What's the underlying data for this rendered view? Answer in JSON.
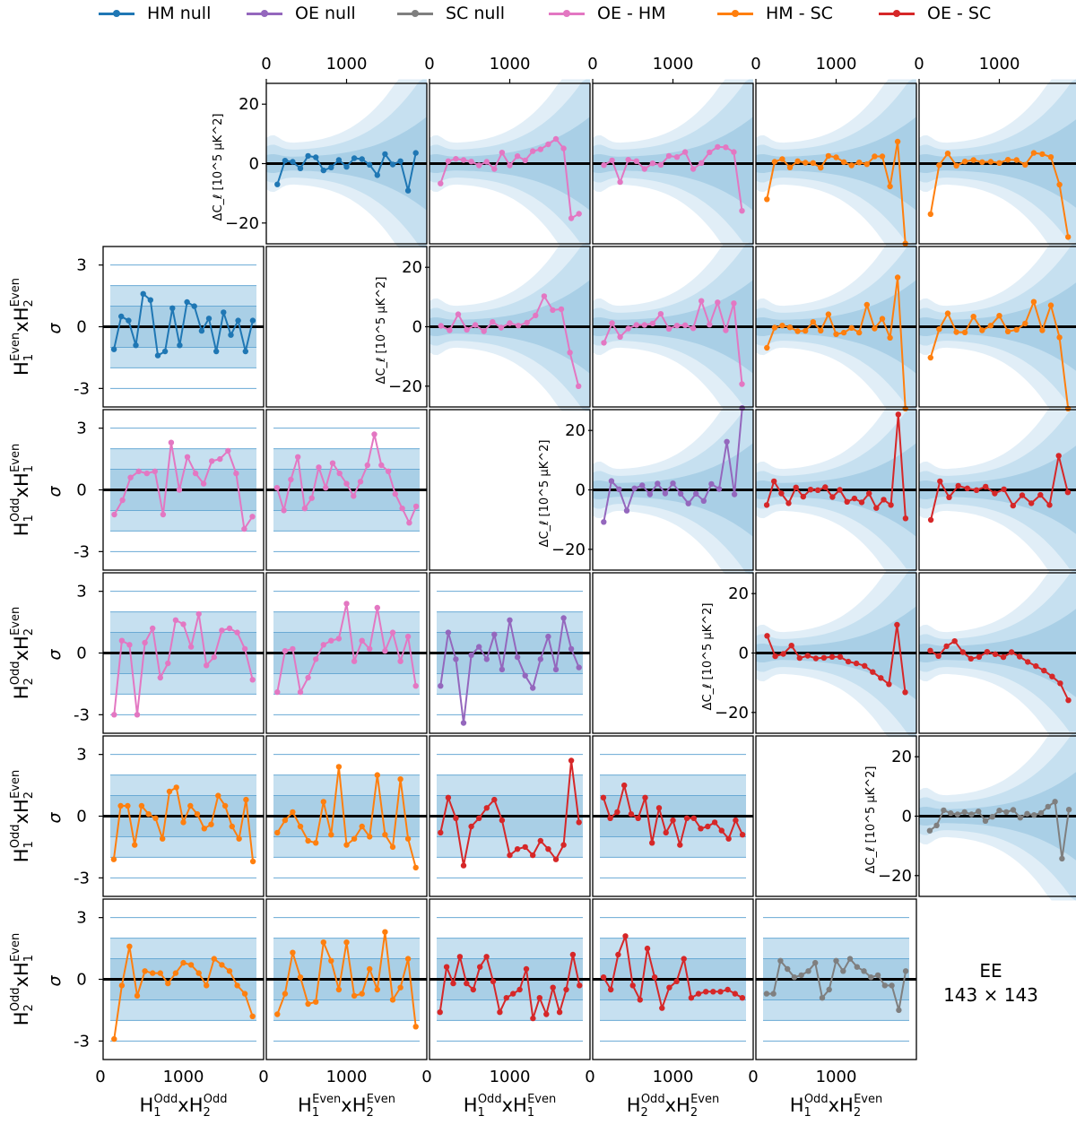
{
  "legend": [
    {
      "label": "HM null",
      "color": "#1f77b4"
    },
    {
      "label": "OE null",
      "color": "#9467bd"
    },
    {
      "label": "SC null",
      "color": "#7f7f7f"
    },
    {
      "label": "OE - HM",
      "color": "#e377c2"
    },
    {
      "label": "HM - SC",
      "color": "#ff7f0e"
    },
    {
      "label": "OE - SC",
      "color": "#d62728"
    }
  ],
  "annotation": {
    "line1": "EE",
    "line2": "143 × 143"
  },
  "axis_text": {
    "sigma": "σ",
    "dcl_ylabel": "ΔC_ℓ [10^5 μK^2]",
    "map_rows": [
      "H1EvenxH2Even",
      "H1OddxH1Even",
      "H2OddxH2Even",
      "H1OddxH2Even",
      "H2OddxH1Even"
    ],
    "map_cols": [
      "H1OddxH2Odd",
      "H1EvenxH2Even",
      "H1OddxH1Even",
      "H2OddxH2Even",
      "H1OddxH2Even"
    ],
    "x_ticks": [
      "0",
      "1000"
    ],
    "dcl_yticks": [
      "20",
      "0",
      "−20"
    ],
    "sigma_yticks": [
      "3",
      "0",
      "-3"
    ]
  },
  "chart_data": {
    "type": "line",
    "panel_grid": "6x6 triangular matrix; upper triangle: ΔC_ℓ differences with 1σ/2σ/3σ bands; lower triangle: differences normalised in σ",
    "x_range": [
      0,
      2000
    ],
    "dcl_ylim": [
      -27,
      27
    ],
    "sigma_ylim": [
      -3.9,
      3.9
    ],
    "maps": [
      "H1OddxH2Odd",
      "H1EvenxH2Even",
      "H1OddxH1Even",
      "H2OddxH2Even",
      "H1OddxH2Even",
      "H2OddxH1Even"
    ],
    "colors": {
      "hm": "#1f77b4",
      "oe": "#9467bd",
      "sc": "#7f7f7f",
      "oehm": "#e377c2",
      "hmsc": "#ff7f0e",
      "oesc": "#d62728"
    },
    "upper": [
      {
        "row": 0,
        "col": 1,
        "series": "hm",
        "y": [
          -7,
          1,
          0.6,
          -1.6,
          2.6,
          2.1,
          -2.3,
          -1.3,
          1.2,
          -1.1,
          1.8,
          1.5,
          -0.4,
          -3.9,
          3.2,
          -0.3,
          0.8,
          -9.1,
          3.6
        ]
      },
      {
        "row": 0,
        "col": 2,
        "series": "oehm",
        "y": [
          -6.7,
          0.8,
          1.6,
          1.2,
          0.7,
          -0.6,
          0.6,
          -1.8,
          3.7,
          -0.6,
          2.5,
          1.1,
          4.2,
          4.8,
          6.5,
          8.3,
          5.1,
          -18.4,
          -16.9
        ]
      },
      {
        "row": 0,
        "col": 3,
        "series": "oehm",
        "y": [
          -0.5,
          1.1,
          -6.2,
          1.3,
          0.8,
          -1.8,
          0.1,
          -0.4,
          2.6,
          2.2,
          3.9,
          -1.8,
          0.2,
          3.8,
          5.6,
          5.5,
          3.9,
          -15.9
        ]
      },
      {
        "row": 0,
        "col": 4,
        "series": "hmsc",
        "y": [
          -12,
          0.6,
          1.5,
          -1.3,
          0.8,
          0.3,
          0.2,
          -1.4,
          2.6,
          2.1,
          0.5,
          -0.6,
          0.4,
          -0.2,
          2.4,
          2.4,
          -7.7,
          7.4,
          -26.9
        ]
      },
      {
        "row": 0,
        "col": 5,
        "series": "hmsc",
        "y": [
          -17,
          -0.5,
          3.4,
          -0.7,
          0.7,
          1.2,
          0.5,
          0.6,
          0.2,
          1.3,
          1.2,
          -0.4,
          3.6,
          3.2,
          2.2,
          -7.1,
          -24.7
        ]
      },
      {
        "row": 1,
        "col": 2,
        "series": "oehm",
        "y": [
          0.3,
          -1.2,
          4.2,
          -1,
          0.6,
          -1.5,
          1.6,
          -0.3,
          1.2,
          0.4,
          1.4,
          3.8,
          10.3,
          5.6,
          5.9,
          -8.7,
          -20
        ]
      },
      {
        "row": 1,
        "col": 3,
        "series": "oehm",
        "y": [
          -5.4,
          1.2,
          -3.4,
          -0.6,
          0.6,
          0.6,
          1.1,
          4.3,
          -0.7,
          0.4,
          0.5,
          -0.5,
          8.7,
          0.7,
          8.2,
          -1.2,
          7.9,
          -19.3
        ]
      },
      {
        "row": 1,
        "col": 4,
        "series": "hmsc",
        "y": [
          -7.1,
          -0.3,
          0.4,
          -0.2,
          -1.5,
          -1.4,
          1.6,
          -1.3,
          4.2,
          -2.5,
          -2,
          -0.4,
          -2,
          7.4,
          -0.6,
          2.7,
          -3.7,
          16.6,
          -30.9
        ]
      },
      {
        "row": 1,
        "col": 5,
        "series": "hmsc",
        "y": [
          -10.4,
          -0.8,
          4.5,
          -1.8,
          -1.9,
          3.4,
          -1.2,
          0.4,
          3.7,
          -1.6,
          -1,
          1.1,
          8.4,
          -1.2,
          7.2,
          -3.6,
          -29
        ]
      },
      {
        "row": 2,
        "col": 3,
        "series": "oe",
        "y": [
          -10.8,
          3,
          0.2,
          -7,
          0.5,
          1.5,
          -1.5,
          2.1,
          -1.2,
          2.2,
          -1.3,
          -4.6,
          -1.3,
          -3.7,
          2,
          0.3,
          16.2,
          -1.5,
          29.3
        ]
      },
      {
        "row": 2,
        "col": 4,
        "series": "oesc",
        "y": [
          -5.1,
          2.9,
          -1.2,
          -4.5,
          0.8,
          -2.3,
          0.1,
          -0.1,
          0.9,
          -2.4,
          0,
          -4,
          -2.9,
          -4.2,
          -1.2,
          -6.1,
          -3.3,
          -5.1,
          25.4,
          -9.6
        ]
      },
      {
        "row": 2,
        "col": 5,
        "series": "oesc",
        "y": [
          -10.1,
          2.9,
          -2.5,
          1.4,
          0.5,
          -0.1,
          1.1,
          -1.2,
          0.2,
          -5.3,
          -1.8,
          -4.5,
          -1.7,
          -5.1,
          11.5,
          -0.8
        ]
      },
      {
        "row": 3,
        "col": 4,
        "series": "oesc",
        "y": [
          5.8,
          -1.1,
          -0.3,
          2.5,
          -1.7,
          -0.9,
          -1.8,
          -1.6,
          -1.3,
          -1.3,
          -2.9,
          -3.5,
          -4.3,
          -6.4,
          -8.4,
          -10.5,
          9.5,
          -13.2
        ]
      },
      {
        "row": 3,
        "col": 5,
        "series": "oesc",
        "y": [
          0.8,
          -1,
          2.3,
          4,
          0.3,
          -1.9,
          -1.3,
          0.4,
          -0.4,
          -1.4,
          0.3,
          -1.2,
          -3,
          -4.4,
          -5.9,
          -7.9,
          -10.2,
          -15.9
        ]
      },
      {
        "row": 4,
        "col": 5,
        "series": "sc",
        "y": [
          -4.9,
          -3.1,
          2,
          1,
          0.6,
          1.4,
          0.6,
          1.6,
          -1.6,
          -0.2,
          1.9,
          1.4,
          2.1,
          -0.5,
          0.8,
          0.4,
          1.1,
          3.2,
          4.9,
          -14.3,
          2.2
        ]
      }
    ],
    "lower": [
      {
        "row": 1,
        "col": 0,
        "series": "hm",
        "y": [
          -1.1,
          0.5,
          0.3,
          -0.9,
          1.6,
          1.3,
          -1.4,
          -1.2,
          0.9,
          -0.9,
          1.2,
          1,
          -0.2,
          0.4,
          -1.2,
          0.7,
          -0.4,
          0.3,
          -1.2,
          0.3
        ]
      },
      {
        "row": 2,
        "col": 0,
        "series": "oehm",
        "y": [
          -1.2,
          -0.5,
          0.6,
          0.9,
          0.8,
          0.9,
          -1.2,
          2.3,
          0,
          1.6,
          0.8,
          0.3,
          1.4,
          1.5,
          1.9,
          0.8,
          -1.9,
          -1.3
        ]
      },
      {
        "row": 2,
        "col": 1,
        "series": "oehm",
        "y": [
          0.1,
          -1,
          0.5,
          1.6,
          -0.9,
          -0.4,
          1.1,
          0.1,
          1.3,
          0.8,
          0.3,
          -0.3,
          0.4,
          1.2,
          2.7,
          1.2,
          0.9,
          -0.2,
          -0.9,
          -1.6,
          -0.8
        ]
      },
      {
        "row": 3,
        "col": 0,
        "series": "oehm",
        "y": [
          -3,
          0.6,
          0.4,
          -3,
          0.5,
          1.2,
          -1.2,
          -0.5,
          1.6,
          1.4,
          0.3,
          1.9,
          -0.6,
          -0.2,
          1.1,
          1.2,
          1,
          0.2,
          -1.3
        ]
      },
      {
        "row": 3,
        "col": 1,
        "series": "oehm",
        "y": [
          -1.9,
          0.1,
          0.2,
          -1.9,
          -1.2,
          -0.3,
          0.4,
          0.6,
          0.7,
          2.4,
          -0.4,
          0.6,
          0.2,
          2.2,
          0.1,
          1,
          -0.4,
          0.8,
          -1.6
        ]
      },
      {
        "row": 3,
        "col": 2,
        "series": "oe",
        "y": [
          -1.6,
          1,
          -0.3,
          -3.4,
          -0.1,
          0.3,
          -0.3,
          0.9,
          -0.8,
          1.6,
          -0.2,
          -1.1,
          -1.7,
          -0.3,
          0.8,
          -0.8,
          1.7,
          0.2,
          -0.7
        ]
      },
      {
        "row": 4,
        "col": 0,
        "series": "hmsc",
        "y": [
          -2.1,
          0.5,
          0.5,
          -1.4,
          0.5,
          0.1,
          -0.1,
          -1.1,
          1.2,
          1.4,
          -0.3,
          0.5,
          0.1,
          -0.6,
          -0.4,
          1,
          0.5,
          -0.5,
          -1.1,
          0.8,
          -2.2
        ]
      },
      {
        "row": 4,
        "col": 1,
        "series": "hmsc",
        "y": [
          -0.8,
          -0.2,
          0.2,
          -0.5,
          -1.2,
          -1.3,
          0.7,
          -0.9,
          2.4,
          -1.4,
          -1.1,
          -0.5,
          -1,
          2,
          -0.9,
          -1.5,
          1.8,
          -1.1,
          -2.5
        ]
      },
      {
        "row": 4,
        "col": 2,
        "series": "oesc",
        "y": [
          -0.8,
          0.9,
          -0.1,
          -2.4,
          -0.5,
          -0.1,
          0.4,
          0.8,
          -0.2,
          -1.9,
          -1.6,
          -1.5,
          -1.9,
          -1.2,
          -1.6,
          -2.1,
          -1.4,
          2.7,
          -0.3
        ]
      },
      {
        "row": 4,
        "col": 3,
        "series": "oesc",
        "y": [
          0.9,
          -0.1,
          0.2,
          1.5,
          0.1,
          -0.1,
          0.9,
          -1.3,
          0.4,
          -0.8,
          -0.2,
          -1.4,
          -0.1,
          -0.1,
          -0.6,
          -0.5,
          -0.3,
          -0.7,
          -1.1,
          -0.2,
          -0.9
        ]
      },
      {
        "row": 5,
        "col": 0,
        "series": "hmsc",
        "y": [
          -2.9,
          -0.3,
          1.6,
          -0.8,
          0.4,
          0.3,
          0.3,
          -0.2,
          0.3,
          0.8,
          0.7,
          0.3,
          -0.3,
          1,
          0.7,
          0.4,
          -0.3,
          -0.7,
          -1.8
        ]
      },
      {
        "row": 5,
        "col": 1,
        "series": "hmsc",
        "y": [
          -1.7,
          -0.7,
          1.3,
          0.1,
          -1.2,
          -1.1,
          1.8,
          0.9,
          -0.5,
          1.8,
          -0.8,
          -0.7,
          0.5,
          -0.5,
          2.3,
          -1,
          -0.4,
          1,
          -2.3
        ]
      },
      {
        "row": 5,
        "col": 2,
        "series": "oesc",
        "y": [
          -1.6,
          0.6,
          -0.2,
          1.1,
          -0.2,
          -0.5,
          0.6,
          1.1,
          -0.1,
          -1.6,
          -0.9,
          -0.7,
          -0.5,
          0.5,
          -1.9,
          -0.9,
          -1.7,
          -0.4,
          -1.6,
          -0.5,
          1.2,
          -0.3
        ]
      },
      {
        "row": 5,
        "col": 3,
        "series": "oesc",
        "y": [
          0.1,
          -0.5,
          1.2,
          2.1,
          -0.3,
          -1,
          1.5,
          0.1,
          -1.4,
          -0.4,
          -0.1,
          1,
          -0.9,
          -0.7,
          -0.6,
          -0.6,
          -0.6,
          -0.5,
          -0.7,
          -0.9
        ]
      },
      {
        "row": 5,
        "col": 4,
        "series": "sc",
        "y": [
          -0.7,
          -0.7,
          0.9,
          0.5,
          0.1,
          0.2,
          0.4,
          0.8,
          -0.9,
          -0.5,
          0.9,
          0.4,
          1,
          0.6,
          0.4,
          0.1,
          0.2,
          -0.3,
          -0.3,
          -1.5,
          0.4
        ]
      }
    ]
  }
}
